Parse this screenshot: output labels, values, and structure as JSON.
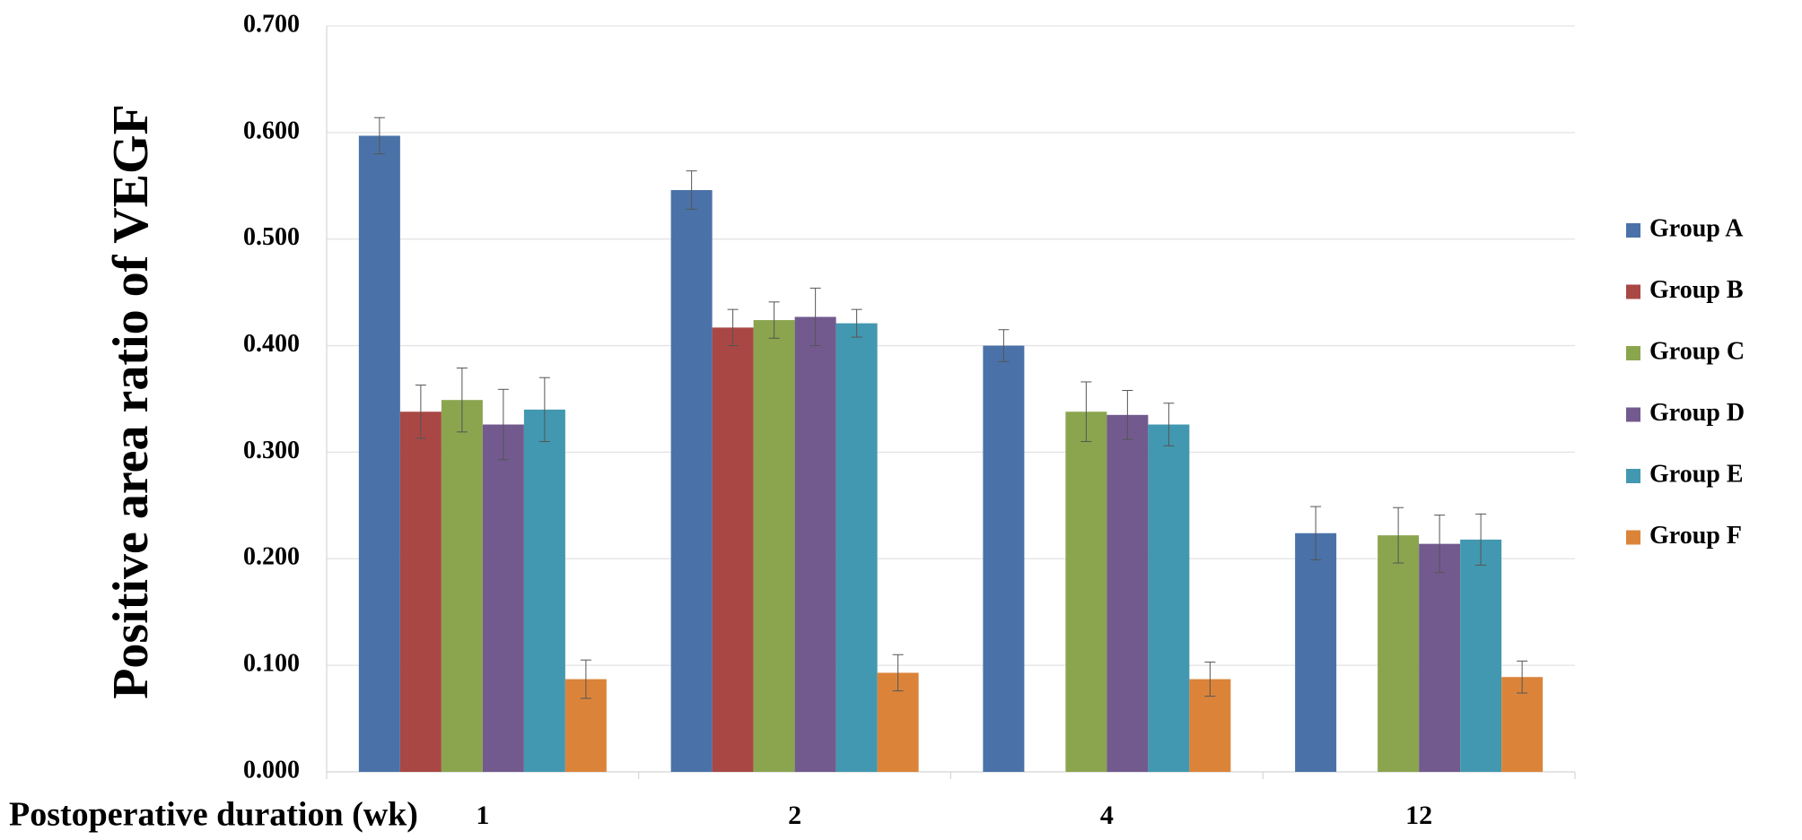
{
  "chart_data": {
    "type": "bar",
    "y_label": "Positive area ratio of VEGF",
    "x_label": "Postoperative duration (wk)",
    "categories": [
      "1",
      "2",
      "4",
      "12"
    ],
    "series": [
      {
        "name": "Group A",
        "color": "#4a72a8",
        "values": [
          0.597,
          0.546,
          0.4,
          0.224
        ],
        "errors": [
          0.017,
          0.018,
          0.015,
          0.025
        ]
      },
      {
        "name": "Group B",
        "color": "#a94744",
        "values": [
          0.338,
          0.417,
          null,
          null
        ],
        "errors": [
          0.025,
          0.017,
          null,
          null
        ]
      },
      {
        "name": "Group C",
        "color": "#8aa54e",
        "values": [
          0.349,
          0.424,
          0.338,
          0.222
        ],
        "errors": [
          0.03,
          0.017,
          0.028,
          0.026
        ]
      },
      {
        "name": "Group D",
        "color": "#725a8e",
        "values": [
          0.326,
          0.427,
          0.335,
          0.214
        ],
        "errors": [
          0.033,
          0.027,
          0.023,
          0.027
        ]
      },
      {
        "name": "Group E",
        "color": "#4298b0",
        "values": [
          0.34,
          0.421,
          0.326,
          0.218
        ],
        "errors": [
          0.03,
          0.013,
          0.02,
          0.024
        ]
      },
      {
        "name": "Group F",
        "color": "#db8439",
        "values": [
          0.087,
          0.093,
          0.087,
          0.089
        ],
        "errors": [
          0.018,
          0.017,
          0.016,
          0.015
        ]
      }
    ],
    "ylim": [
      0,
      0.7
    ],
    "yticks": [
      {
        "value": 0,
        "label": "0.000"
      },
      {
        "value": 0.1,
        "label": "0.100"
      },
      {
        "value": 0.2,
        "label": "0.200"
      },
      {
        "value": 0.3,
        "label": "0.300"
      },
      {
        "value": 0.4,
        "label": "0.400"
      },
      {
        "value": 0.5,
        "label": "0.500"
      },
      {
        "value": 0.6,
        "label": "0.600"
      },
      {
        "value": 0.7,
        "label": "0.700"
      }
    ],
    "grid": true,
    "legend": "right"
  }
}
